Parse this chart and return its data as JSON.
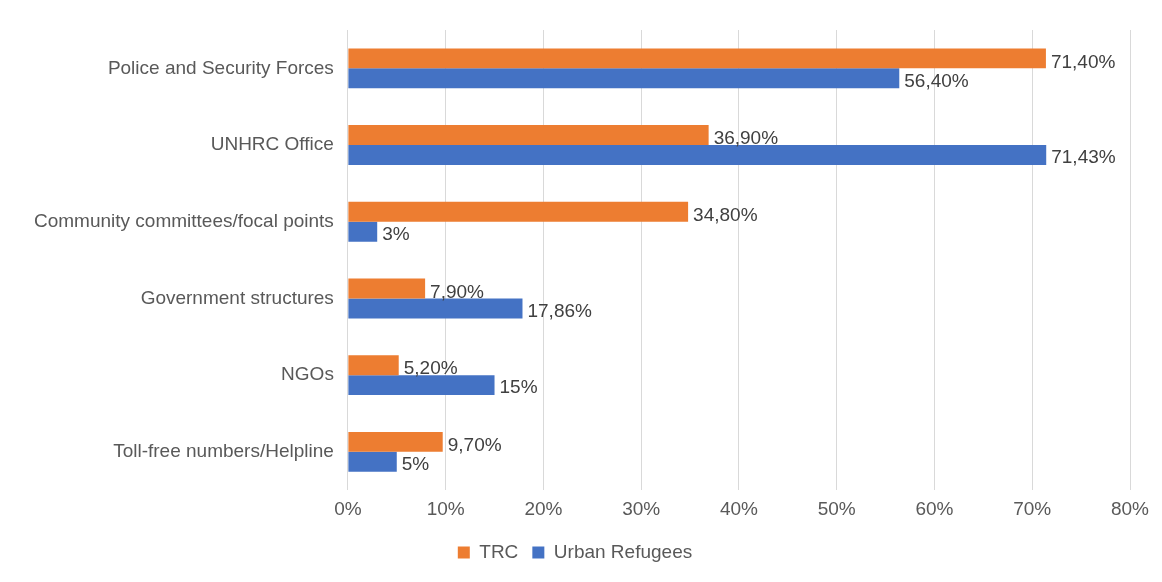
{
  "chart_data": {
    "type": "bar",
    "orientation": "horizontal",
    "categories": [
      "Police and Security Forces",
      "UNHRC Office",
      "Community committees/focal points",
      "Government structures",
      "NGOs",
      "Toll-free numbers/Helpline"
    ],
    "series": [
      {
        "name": "TRC",
        "color": "#ed7d31",
        "values": [
          71.4,
          36.9,
          34.8,
          7.9,
          5.2,
          9.7
        ],
        "value_labels": [
          "71,40%",
          "36,90%",
          "34,80%",
          "7,90%",
          "5,20%",
          "9,70%"
        ]
      },
      {
        "name": "Urban Refugees",
        "color": "#4472c4",
        "values": [
          56.4,
          71.43,
          3,
          17.86,
          15,
          5
        ],
        "value_labels": [
          "56,40%",
          "71,43%",
          "3%",
          "17,86%",
          "15%",
          "5%"
        ]
      }
    ],
    "xlim": [
      0,
      80
    ],
    "xticks": [
      {
        "value": 0,
        "label": "0%"
      },
      {
        "value": 10,
        "label": "10%"
      },
      {
        "value": 20,
        "label": "20%"
      },
      {
        "value": 30,
        "label": "30%"
      },
      {
        "value": 40,
        "label": "40%"
      },
      {
        "value": 50,
        "label": "50%"
      },
      {
        "value": 60,
        "label": "60%"
      },
      {
        "value": 70,
        "label": "70%"
      },
      {
        "value": 80,
        "label": "80%"
      }
    ],
    "grid": "x",
    "legend": "bottom"
  }
}
